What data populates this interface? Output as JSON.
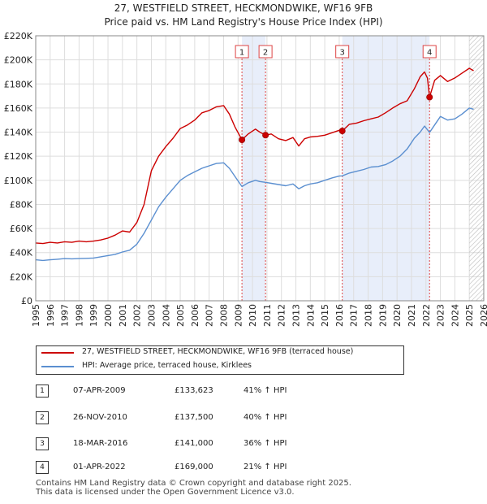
{
  "title": "27, WESTFIELD STREET, HECKMONDWIKE, WF16 9FB",
  "subtitle": "Price paid vs. HM Land Registry's House Price Index (HPI)",
  "colors": {
    "property": "#cc0000",
    "hpi": "#5b8fd0",
    "band": "#e8eefa",
    "marker": "#cc0000"
  },
  "chart_data": {
    "type": "line",
    "title": "27, WESTFIELD STREET, HECKMONDWIKE, WF16 9FB",
    "subtitle": "Price paid vs. HM Land Registry's House Price Index (HPI)",
    "xlim": [
      1995,
      2026
    ],
    "ylim": [
      0,
      220000
    ],
    "yticks": [
      0,
      20000,
      40000,
      60000,
      80000,
      100000,
      120000,
      140000,
      160000,
      180000,
      200000,
      220000
    ],
    "ytick_labels": [
      "£0",
      "£20K",
      "£40K",
      "£60K",
      "£80K",
      "£100K",
      "£120K",
      "£140K",
      "£160K",
      "£180K",
      "£200K",
      "£220K"
    ],
    "xticks": [
      1995,
      1996,
      1997,
      1998,
      1999,
      2000,
      2001,
      2002,
      2003,
      2004,
      2005,
      2006,
      2007,
      2008,
      2009,
      2010,
      2011,
      2012,
      2013,
      2014,
      2015,
      2016,
      2017,
      2018,
      2019,
      2020,
      2021,
      2022,
      2023,
      2024,
      2025,
      2026
    ],
    "xtick_labels": [
      "1995",
      "1996",
      "1997",
      "1998",
      "1999",
      "2000",
      "2001",
      "2002",
      "2003",
      "2004",
      "2005",
      "2006",
      "2007",
      "2008",
      "2009",
      "2010",
      "2011",
      "2012",
      "2013",
      "2014",
      "2015",
      "2016",
      "2017",
      "2018",
      "2019",
      "2020",
      "2021",
      "2022",
      "2023",
      "2024",
      "2025",
      "2026"
    ],
    "grid": true,
    "shaded_bands": [
      [
        2009.27,
        2010.9
      ],
      [
        2016.21,
        2022.25
      ]
    ],
    "future_hatch_from": 2025.0,
    "series": [
      {
        "name": "27, WESTFIELD STREET, HECKMONDWIKE, WF16 9FB (terraced house)",
        "color": "#cc0000",
        "x": [
          1995.0,
          1995.5,
          1996.0,
          1996.5,
          1997.0,
          1997.5,
          1998.0,
          1998.5,
          1999.0,
          1999.5,
          2000.0,
          2000.5,
          2001.0,
          2001.5,
          2002.0,
          2002.5,
          2003.0,
          2003.5,
          2004.0,
          2004.5,
          2005.0,
          2005.5,
          2006.0,
          2006.5,
          2007.0,
          2007.5,
          2008.0,
          2008.4,
          2008.8,
          2009.27,
          2009.7,
          2010.2,
          2010.5,
          2010.9,
          2011.3,
          2011.8,
          2012.3,
          2012.8,
          2013.2,
          2013.6,
          2014.0,
          2014.5,
          2015.0,
          2015.5,
          2016.0,
          2016.21,
          2016.7,
          2017.2,
          2017.7,
          2018.2,
          2018.7,
          2019.2,
          2019.7,
          2020.2,
          2020.7,
          2021.2,
          2021.6,
          2021.9,
          2022.1,
          2022.25,
          2022.6,
          2023.0,
          2023.5,
          2024.0,
          2024.5,
          2025.0,
          2025.3
        ],
        "y": [
          48000,
          47500,
          48500,
          48000,
          49000,
          48500,
          49500,
          49000,
          49500,
          50500,
          52000,
          54500,
          58000,
          57000,
          65000,
          80000,
          108000,
          120000,
          128000,
          135000,
          143000,
          146000,
          150000,
          156000,
          158000,
          161000,
          162000,
          155000,
          144000,
          133623,
          138500,
          142500,
          140000,
          137500,
          138500,
          134500,
          133000,
          135500,
          128500,
          134500,
          136000,
          136500,
          137500,
          139500,
          141500,
          141000,
          146500,
          147500,
          149500,
          151000,
          152500,
          156000,
          160000,
          163500,
          166000,
          176000,
          186000,
          190000,
          185000,
          169000,
          183000,
          187000,
          182000,
          185000,
          189000,
          193000,
          191000
        ]
      },
      {
        "name": "HPI: Average price, terraced house, Kirklees",
        "color": "#5b8fd0",
        "x": [
          1995.0,
          1995.5,
          1996.0,
          1996.5,
          1997.0,
          1997.5,
          1998.0,
          1998.5,
          1999.0,
          1999.5,
          2000.0,
          2000.5,
          2001.0,
          2001.5,
          2002.0,
          2002.5,
          2003.0,
          2003.5,
          2004.0,
          2004.5,
          2005.0,
          2005.5,
          2006.0,
          2006.5,
          2007.0,
          2007.5,
          2008.0,
          2008.4,
          2008.8,
          2009.27,
          2009.7,
          2010.2,
          2010.5,
          2010.9,
          2011.3,
          2011.8,
          2012.3,
          2012.8,
          2013.2,
          2013.6,
          2014.0,
          2014.5,
          2015.0,
          2015.5,
          2016.0,
          2016.21,
          2016.7,
          2017.2,
          2017.7,
          2018.2,
          2018.7,
          2019.2,
          2019.7,
          2020.2,
          2020.7,
          2021.2,
          2021.6,
          2021.9,
          2022.1,
          2022.25,
          2022.6,
          2023.0,
          2023.5,
          2024.0,
          2024.5,
          2025.0,
          2025.3
        ],
        "y": [
          34000,
          33500,
          34000,
          34500,
          35000,
          34800,
          35000,
          35200,
          35500,
          36500,
          37500,
          38500,
          40500,
          42000,
          47000,
          56000,
          67000,
          78000,
          86000,
          93000,
          100000,
          104000,
          107000,
          110000,
          112000,
          114000,
          114500,
          110000,
          103000,
          94800,
          98000,
          100000,
          99000,
          98300,
          97500,
          96500,
          95500,
          97000,
          93000,
          95500,
          97000,
          98000,
          100000,
          102000,
          103500,
          103700,
          106000,
          107500,
          109000,
          111000,
          111500,
          113000,
          116000,
          120000,
          126000,
          135000,
          140000,
          145000,
          142000,
          139700,
          146000,
          153000,
          150000,
          151000,
          155000,
          160000,
          159000
        ]
      }
    ],
    "sales": [
      {
        "num": "1",
        "x": 2009.27,
        "price": 133623
      },
      {
        "num": "2",
        "x": 2010.9,
        "price": 137500
      },
      {
        "num": "3",
        "x": 2016.21,
        "price": 141000
      },
      {
        "num": "4",
        "x": 2022.25,
        "price": 169000
      }
    ]
  },
  "legend": {
    "property_label": "27, WESTFIELD STREET, HECKMONDWIKE, WF16 9FB (terraced house)",
    "hpi_label": "HPI: Average price, terraced house, Kirklees"
  },
  "transactions": [
    {
      "num": "1",
      "date": "07-APR-2009",
      "price": "£133,623",
      "hpi": "41% ↑ HPI"
    },
    {
      "num": "2",
      "date": "26-NOV-2010",
      "price": "£137,500",
      "hpi": "40% ↑ HPI"
    },
    {
      "num": "3",
      "date": "18-MAR-2016",
      "price": "£141,000",
      "hpi": "36% ↑ HPI"
    },
    {
      "num": "4",
      "date": "01-APR-2022",
      "price": "£169,000",
      "hpi": "21% ↑ HPI"
    }
  ],
  "footer": {
    "line1": "Contains HM Land Registry data © Crown copyright and database right 2025.",
    "line2": "This data is licensed under the Open Government Licence v3.0."
  }
}
